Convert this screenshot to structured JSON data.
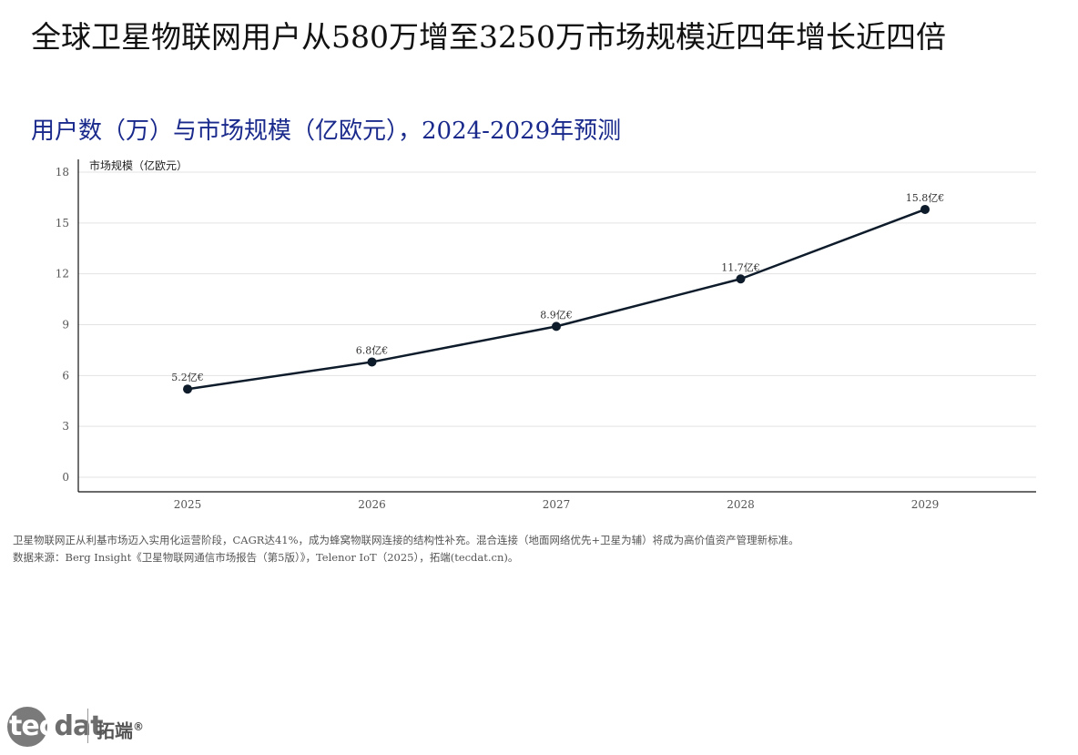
{
  "title": "全球卫星物联网用户从580万增至3250万市场规模近四年增长近四倍",
  "subtitle": "用户数（万）与市场规模（亿欧元），2024-2029年预测",
  "notes": [
    "卫星物联网正从利基市场迈入实用化运营阶段，CAGR达41%，成为蜂窝物联网连接的结构性补充。混合连接（地面网络优先+卫星为辅）将成为高价值资产管理新标准。",
    "数据来源：Berg Insight《卫星物联网通信市场报告（第5版）》，Telenor IoT（2025），拓端(tecdat.cn)。"
  ],
  "logo": {
    "word_light": "tec",
    "word_dark": "dat",
    "cn": "拓端",
    "reg": "®"
  },
  "chart_data": {
    "type": "line",
    "title": "",
    "ylabel": "市场规模（亿欧元）",
    "xlabel": "",
    "categories": [
      "2025",
      "2026",
      "2027",
      "2028",
      "2029"
    ],
    "series": [
      {
        "name": "",
        "values": [
          5.2,
          6.8,
          8.9,
          11.7,
          15.8
        ],
        "labels": [
          "5.2亿€",
          "6.8亿€",
          "8.9亿€",
          "11.7亿€",
          "15.8亿€"
        ],
        "color": "#0d1b2a"
      }
    ],
    "ylim": [
      0,
      18
    ],
    "yticks": [
      0,
      3,
      6,
      9,
      12,
      15,
      18
    ],
    "grid": true,
    "legend": "none"
  },
  "colors": {
    "line": "#0d1b2a",
    "grid": "#e3e3e3",
    "axis": "#111111",
    "subtitle": "#1a2a8c"
  }
}
